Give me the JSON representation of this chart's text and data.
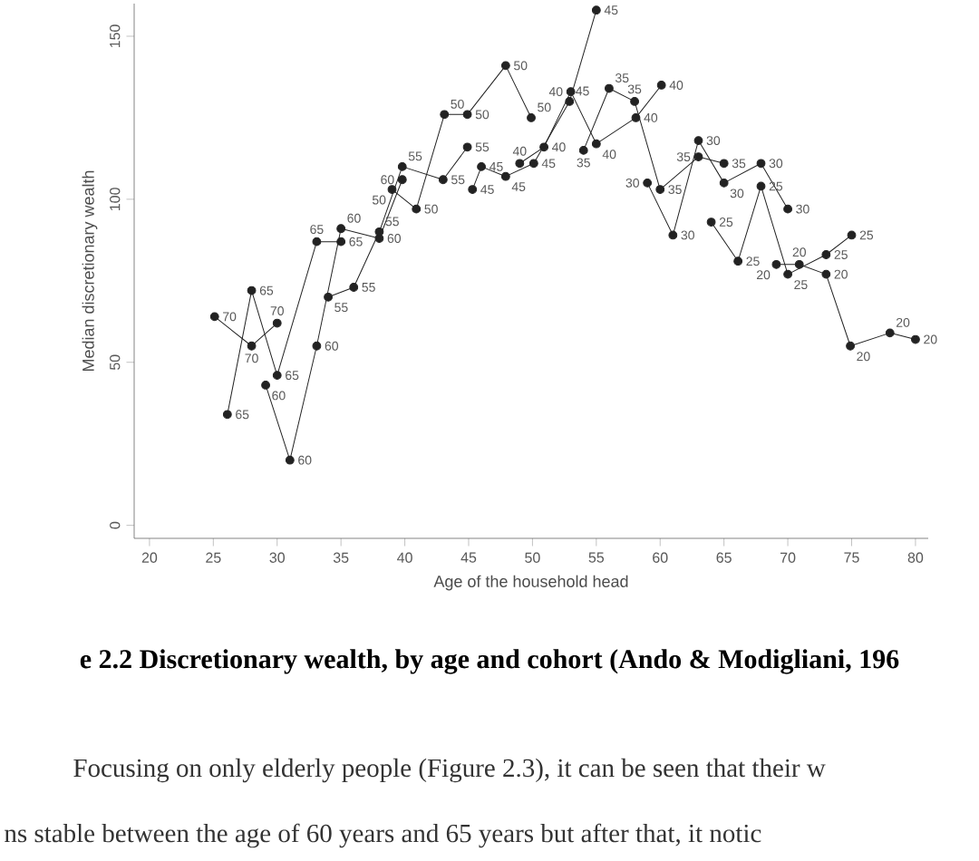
{
  "chart_data": {
    "type": "line",
    "title": "e 2.2 Discretionary wealth, by age and cohort (Ando & Modigliani, 196",
    "xlabel": "Age of the household head",
    "ylabel": "Median discretionary wealth",
    "xlim": [
      18.8,
      81
    ],
    "ylim": [
      -4,
      160
    ],
    "xticks": [
      20,
      25,
      30,
      35,
      40,
      45,
      50,
      55,
      60,
      65,
      70,
      75,
      80
    ],
    "yticks": [
      0,
      50,
      100,
      150
    ],
    "marker": "circle",
    "line_style": "solid",
    "annotations": [
      "Focusing on only elderly people (Figure 2.3), it can be seen that their w",
      "ns stable between the age of 60 years and 65 years but after that, it notic"
    ],
    "series": [
      {
        "name": "70",
        "color": "#222222",
        "x": [
          25.1,
          28.0,
          30.0
        ],
        "values": [
          64,
          55,
          62
        ]
      },
      {
        "name": "65",
        "color": "#222222",
        "x": [
          26.1,
          28.0,
          30.0,
          33.1,
          35.0
        ],
        "values": [
          34,
          72,
          46,
          87,
          87
        ]
      },
      {
        "name": "60",
        "color": "#222222",
        "x": [
          29.1,
          31.0,
          33.1,
          35.0,
          38.0,
          39.8
        ],
        "values": [
          43,
          20,
          55,
          91,
          88,
          106
        ]
      },
      {
        "name": "55",
        "color": "#222222",
        "x": [
          34.0,
          36.0,
          38.0,
          39.8,
          43.0,
          44.9
        ],
        "values": [
          70,
          73,
          90,
          110,
          106,
          116
        ]
      },
      {
        "name": "50",
        "color": "#222222",
        "x": [
          39.0,
          40.9,
          43.1,
          44.9,
          47.9,
          49.9
        ],
        "values": [
          103,
          97,
          126,
          126,
          141,
          125
        ]
      },
      {
        "name": "45",
        "color": "#222222",
        "x": [
          45.3,
          46.0,
          47.9,
          50.1,
          52.9,
          55.0
        ],
        "values": [
          103,
          110,
          107,
          111,
          130,
          158
        ]
      },
      {
        "name": "40",
        "color": "#222222",
        "x": [
          49.0,
          50.9,
          53.0,
          55.0,
          58.1,
          60.1
        ],
        "values": [
          111,
          116,
          133,
          117,
          125,
          135
        ]
      },
      {
        "name": "35",
        "color": "#222222",
        "x": [
          54.0,
          56.0,
          58.0,
          60.0,
          63.0,
          65.0
        ],
        "values": [
          115,
          134,
          130,
          103,
          113,
          111
        ]
      },
      {
        "name": "30",
        "color": "#222222",
        "x": [
          59.0,
          61.0,
          63.0,
          65.0,
          67.9,
          70.0
        ],
        "values": [
          105,
          89,
          118,
          105,
          111,
          97
        ]
      },
      {
        "name": "25",
        "color": "#222222",
        "x": [
          64.0,
          66.1,
          67.9,
          70.0,
          73.0,
          75.0
        ],
        "values": [
          93,
          81,
          104,
          77,
          83,
          89
        ]
      },
      {
        "name": "20",
        "color": "#222222",
        "x": [
          69.1,
          70.9,
          73.0,
          74.9,
          78.0,
          80.0
        ],
        "values": [
          80,
          80,
          77,
          55,
          59,
          57
        ]
      }
    ]
  }
}
